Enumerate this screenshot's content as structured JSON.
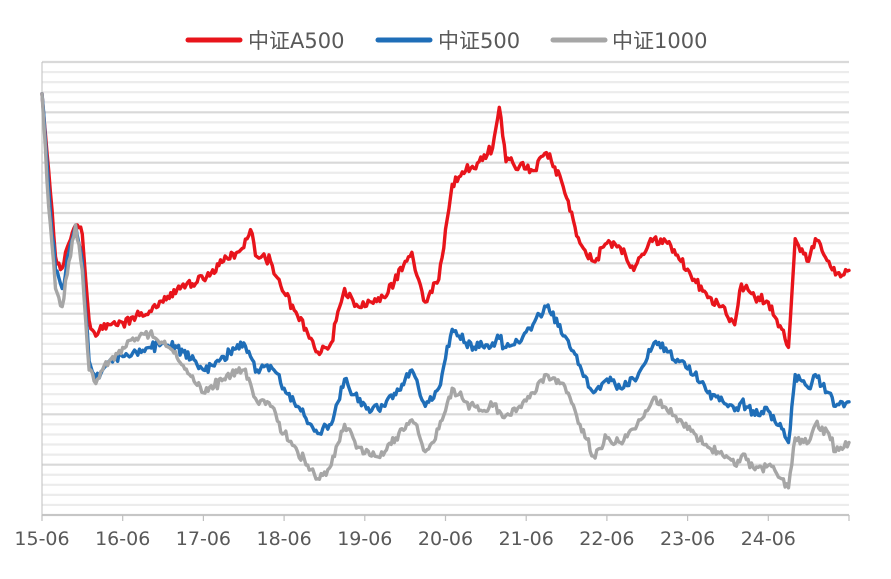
{
  "chart_data": {
    "type": "line",
    "title": "",
    "xlabel": "",
    "ylabel": "",
    "x_tick_labels": [
      "15-06",
      "16-06",
      "17-06",
      "18-06",
      "19-06",
      "20-06",
      "21-06",
      "22-06",
      "23-06",
      "24-06"
    ],
    "xlim": [
      "2015-06",
      "2025-06"
    ],
    "ylim": [
      0,
      1
    ],
    "y_axis_labels_visible": false,
    "grid": true,
    "legend_position": "top",
    "note": "",
    "series": [
      {
        "name": "中证A500",
        "color": "#E8141B",
        "x": [
          "2015-06",
          "2015-07",
          "2015-08",
          "2015-09",
          "2015-10",
          "2015-11",
          "2015-12",
          "2016-01",
          "2016-02",
          "2016-03",
          "2016-04",
          "2016-06",
          "2016-08",
          "2016-10",
          "2016-12",
          "2017-03",
          "2017-06",
          "2017-09",
          "2017-12",
          "2018-01",
          "2018-02",
          "2018-04",
          "2018-06",
          "2018-08",
          "2018-10",
          "2018-11",
          "2019-01",
          "2019-03",
          "2019-05",
          "2019-07",
          "2019-09",
          "2019-12",
          "2020-01",
          "2020-02",
          "2020-03",
          "2020-05",
          "2020-07",
          "2020-09",
          "2020-11",
          "2021-01",
          "2021-02",
          "2021-03",
          "2021-05",
          "2021-07",
          "2021-09",
          "2021-11",
          "2021-12",
          "2022-02",
          "2022-04",
          "2022-06",
          "2022-08",
          "2022-10",
          "2022-11",
          "2023-01",
          "2023-03",
          "2023-05",
          "2023-07",
          "2023-09",
          "2023-11",
          "2024-01",
          "2024-02",
          "2024-04",
          "2024-06",
          "2024-08",
          "2024-09",
          "2024-10",
          "2024-12",
          "2025-01",
          "2025-03",
          "2025-04",
          "2025-06"
        ],
        "y": [
          0.93,
          0.76,
          0.57,
          0.545,
          0.6,
          0.64,
          0.62,
          0.43,
          0.395,
          0.41,
          0.42,
          0.425,
          0.44,
          0.45,
          0.47,
          0.51,
          0.52,
          0.56,
          0.59,
          0.63,
          0.57,
          0.56,
          0.49,
          0.44,
          0.39,
          0.36,
          0.38,
          0.5,
          0.46,
          0.47,
          0.48,
          0.56,
          0.58,
          0.52,
          0.47,
          0.52,
          0.73,
          0.76,
          0.78,
          0.81,
          0.9,
          0.78,
          0.77,
          0.76,
          0.8,
          0.75,
          0.7,
          0.6,
          0.56,
          0.6,
          0.59,
          0.54,
          0.57,
          0.61,
          0.6,
          0.56,
          0.52,
          0.48,
          0.46,
          0.42,
          0.51,
          0.48,
          0.47,
          0.41,
          0.37,
          0.61,
          0.56,
          0.61,
          0.56,
          0.53,
          0.54
        ]
      },
      {
        "name": "中证500",
        "color": "#1F6EB8",
        "x": [
          "2015-06",
          "2015-07",
          "2015-08",
          "2015-09",
          "2015-10",
          "2015-11",
          "2015-12",
          "2016-01",
          "2016-02",
          "2016-03",
          "2016-04",
          "2016-06",
          "2016-08",
          "2016-10",
          "2016-12",
          "2017-03",
          "2017-06",
          "2017-09",
          "2017-12",
          "2018-01",
          "2018-02",
          "2018-04",
          "2018-06",
          "2018-08",
          "2018-10",
          "2018-11",
          "2019-01",
          "2019-03",
          "2019-05",
          "2019-07",
          "2019-09",
          "2019-12",
          "2020-01",
          "2020-02",
          "2020-03",
          "2020-05",
          "2020-07",
          "2020-09",
          "2020-11",
          "2021-01",
          "2021-02",
          "2021-03",
          "2021-05",
          "2021-07",
          "2021-09",
          "2021-11",
          "2021-12",
          "2022-02",
          "2022-04",
          "2022-06",
          "2022-08",
          "2022-10",
          "2022-11",
          "2023-01",
          "2023-03",
          "2023-05",
          "2023-07",
          "2023-09",
          "2023-11",
          "2024-01",
          "2024-02",
          "2024-04",
          "2024-06",
          "2024-08",
          "2024-09",
          "2024-10",
          "2024-12",
          "2025-01",
          "2025-03",
          "2025-04",
          "2025-06"
        ],
        "y": [
          0.93,
          0.72,
          0.54,
          0.5,
          0.58,
          0.64,
          0.56,
          0.34,
          0.3,
          0.32,
          0.34,
          0.35,
          0.36,
          0.37,
          0.38,
          0.36,
          0.32,
          0.35,
          0.38,
          0.35,
          0.32,
          0.33,
          0.28,
          0.24,
          0.2,
          0.18,
          0.2,
          0.3,
          0.25,
          0.23,
          0.24,
          0.3,
          0.32,
          0.28,
          0.24,
          0.28,
          0.41,
          0.38,
          0.37,
          0.38,
          0.39,
          0.37,
          0.38,
          0.42,
          0.46,
          0.42,
          0.39,
          0.33,
          0.27,
          0.3,
          0.28,
          0.3,
          0.32,
          0.38,
          0.36,
          0.34,
          0.31,
          0.27,
          0.26,
          0.23,
          0.25,
          0.22,
          0.23,
          0.19,
          0.16,
          0.31,
          0.28,
          0.31,
          0.27,
          0.24,
          0.25
        ]
      },
      {
        "name": "中证1000",
        "color": "#A6A6A6",
        "x": [
          "2015-06",
          "2015-07",
          "2015-08",
          "2015-09",
          "2015-10",
          "2015-11",
          "2015-12",
          "2016-01",
          "2016-02",
          "2016-03",
          "2016-04",
          "2016-06",
          "2016-08",
          "2016-10",
          "2016-12",
          "2017-03",
          "2017-06",
          "2017-09",
          "2017-12",
          "2018-01",
          "2018-02",
          "2018-04",
          "2018-06",
          "2018-08",
          "2018-10",
          "2018-11",
          "2019-01",
          "2019-03",
          "2019-05",
          "2019-07",
          "2019-09",
          "2019-12",
          "2020-01",
          "2020-02",
          "2020-03",
          "2020-05",
          "2020-07",
          "2020-09",
          "2020-11",
          "2021-01",
          "2021-02",
          "2021-03",
          "2021-05",
          "2021-07",
          "2021-09",
          "2021-11",
          "2021-12",
          "2022-02",
          "2022-04",
          "2022-06",
          "2022-08",
          "2022-10",
          "2022-11",
          "2023-01",
          "2023-03",
          "2023-05",
          "2023-07",
          "2023-09",
          "2023-11",
          "2024-01",
          "2024-02",
          "2024-04",
          "2024-06",
          "2024-08",
          "2024-09",
          "2024-10",
          "2024-12",
          "2025-01",
          "2025-03",
          "2025-04",
          "2025-06"
        ],
        "y": [
          0.93,
          0.68,
          0.5,
          0.46,
          0.56,
          0.64,
          0.54,
          0.32,
          0.29,
          0.32,
          0.34,
          0.37,
          0.39,
          0.4,
          0.38,
          0.33,
          0.27,
          0.3,
          0.32,
          0.29,
          0.25,
          0.24,
          0.18,
          0.14,
          0.1,
          0.08,
          0.11,
          0.2,
          0.15,
          0.13,
          0.14,
          0.19,
          0.21,
          0.18,
          0.14,
          0.19,
          0.28,
          0.25,
          0.23,
          0.24,
          0.23,
          0.22,
          0.24,
          0.27,
          0.31,
          0.29,
          0.27,
          0.2,
          0.13,
          0.17,
          0.16,
          0.19,
          0.21,
          0.26,
          0.23,
          0.21,
          0.18,
          0.15,
          0.14,
          0.11,
          0.13,
          0.1,
          0.11,
          0.08,
          0.06,
          0.17,
          0.16,
          0.2,
          0.18,
          0.14,
          0.16
        ]
      }
    ]
  }
}
